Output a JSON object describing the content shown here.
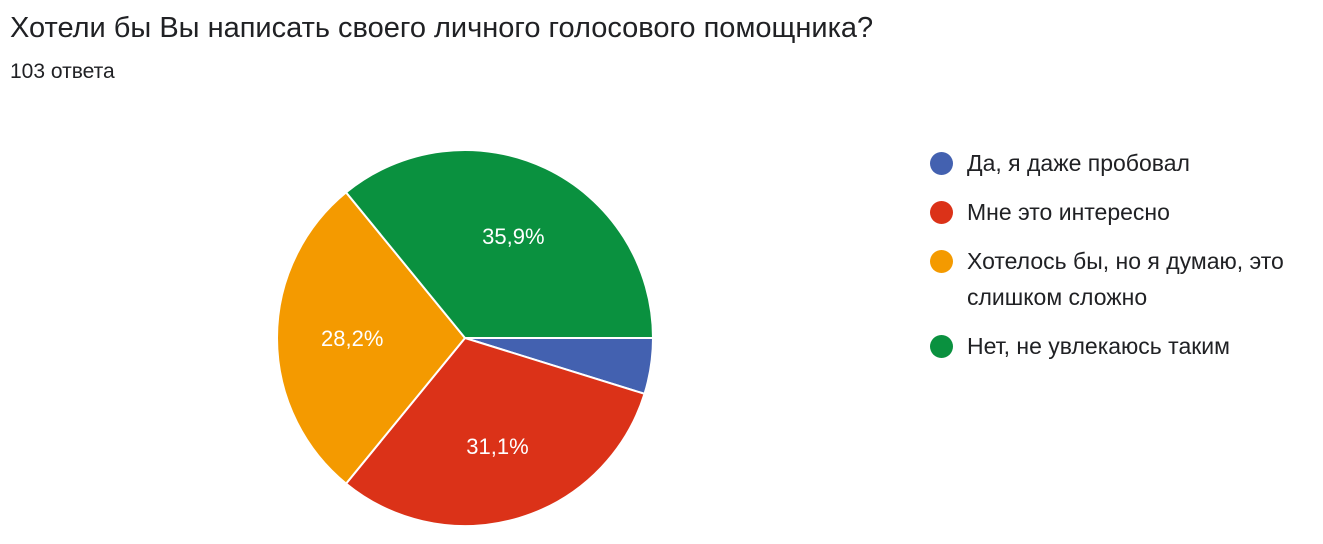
{
  "title": "Хотели бы Вы написать своего личного голосового помощника?",
  "subtitle": "103 ответа",
  "chart_data": {
    "type": "pie",
    "legend_position": "right",
    "categories": [
      "Да, я даже пробовал",
      "Мне это интересно",
      "Хотелось бы, но я думаю, это слишком сложно",
      "Нет, не увлекаюсь таким"
    ],
    "values": [
      4.8,
      31.1,
      28.2,
      35.9
    ],
    "labels": [
      "",
      "31,1%",
      "28,2%",
      "35,9%"
    ],
    "colors": [
      "#4361b0",
      "#db3218",
      "#f49a00",
      "#0a913f"
    ]
  }
}
